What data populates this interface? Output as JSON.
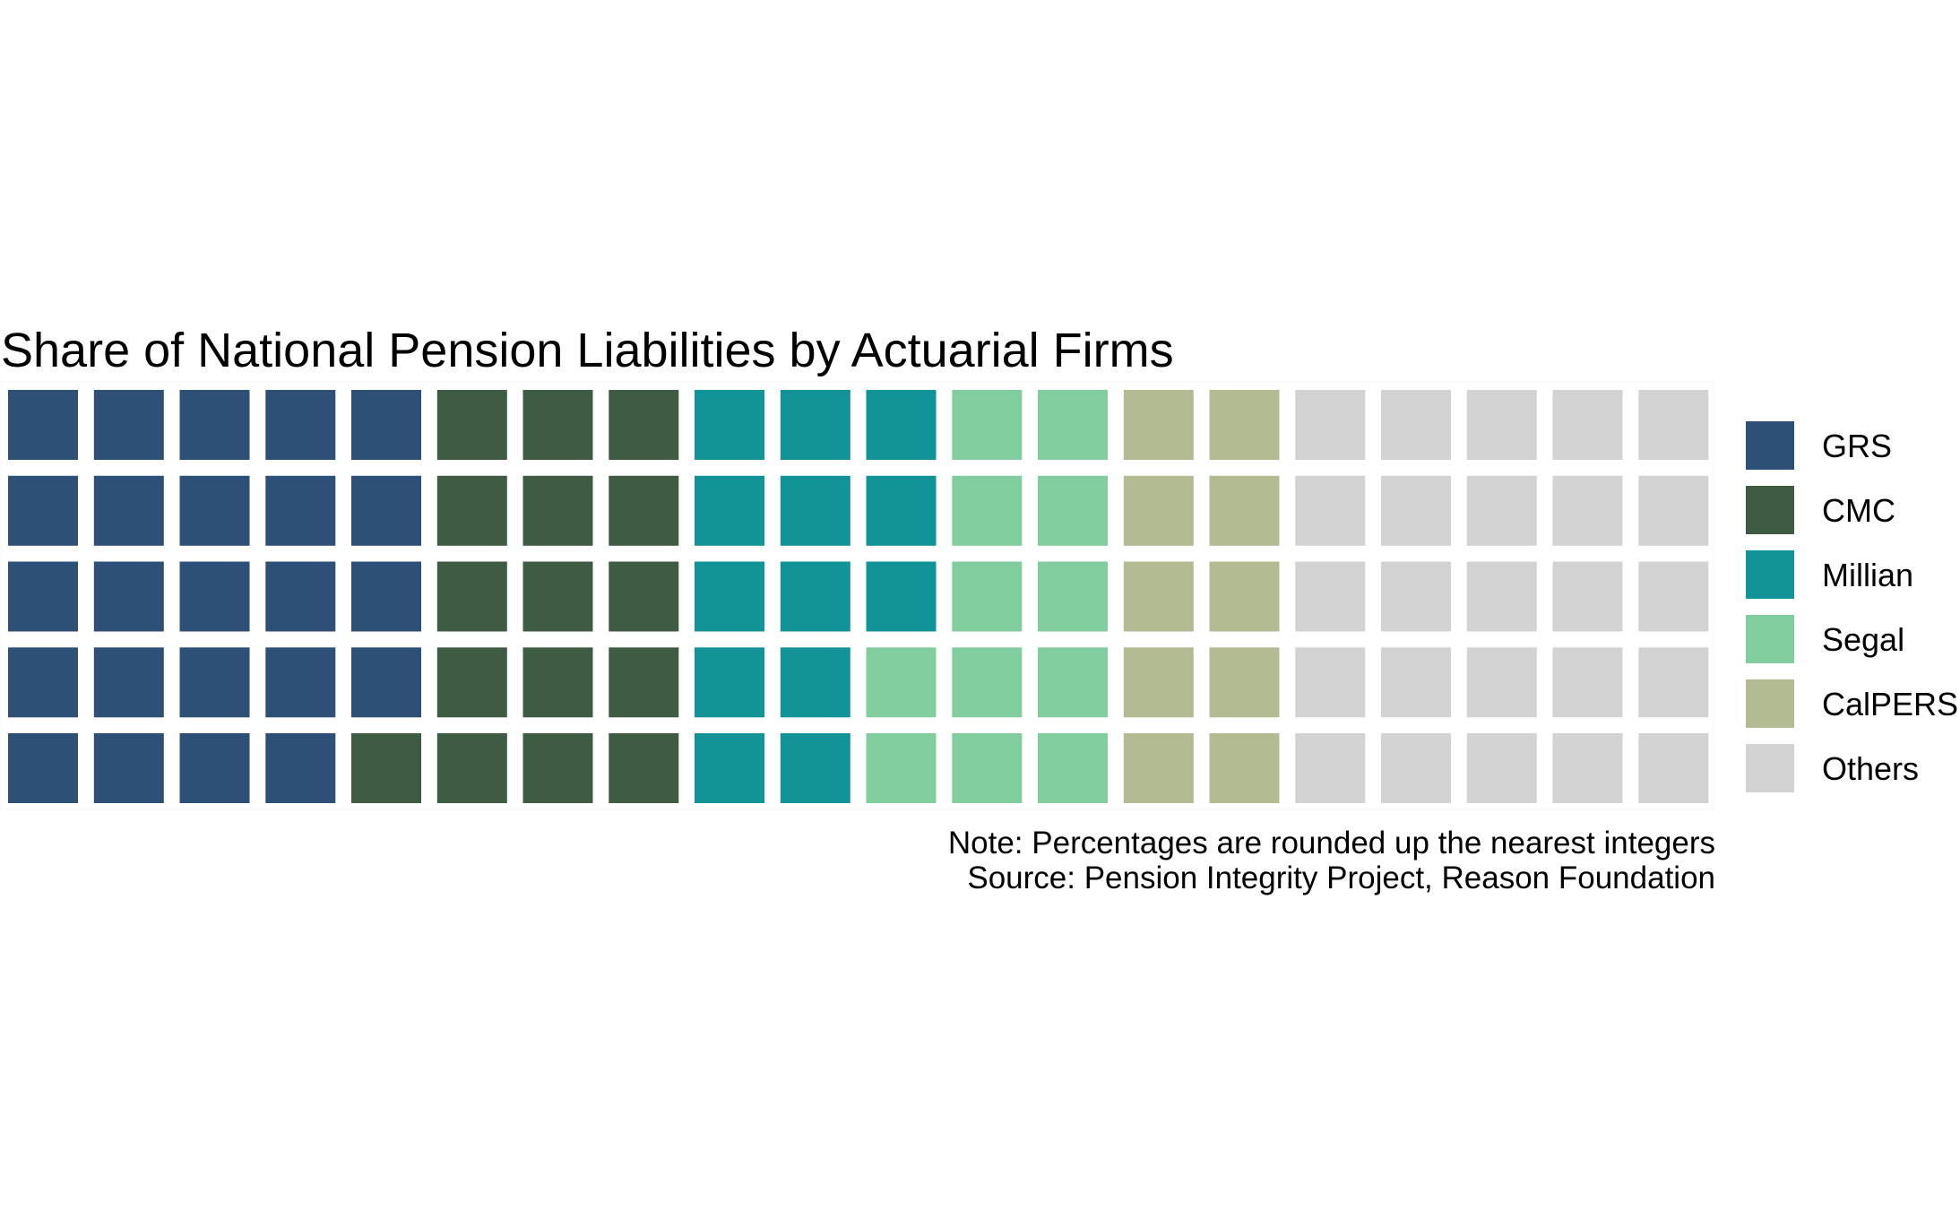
{
  "chart_data": {
    "type": "waffle",
    "title": "Share of National Pension Liabilities by Actuarial Firms",
    "grid": {
      "rows": 5,
      "columns": 20,
      "fill_order": "column-wise, top to bottom, left to right"
    },
    "series": [
      {
        "name": "GRS",
        "value": 24,
        "color": "#2e5077"
      },
      {
        "name": "CMC",
        "value": 16,
        "color": "#3d5c43"
      },
      {
        "name": "Millian",
        "value": 13,
        "color": "#119398"
      },
      {
        "name": "Segal",
        "value": 12,
        "color": "#81cd9e"
      },
      {
        "name": "CalPERS",
        "value": 10,
        "color": "#b3bb92"
      },
      {
        "name": "Others",
        "value": 25,
        "color": "#d3d3d3"
      }
    ],
    "legend_position": "right",
    "notes": [
      "Note: Percentages are rounded up the nearest integers",
      "Source: Pension Integrity Project, Reason Foundation"
    ]
  }
}
